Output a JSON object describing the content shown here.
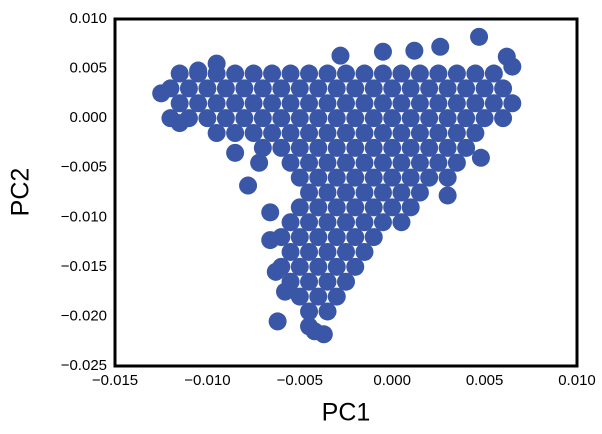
{
  "chart_data": {
    "type": "scatter",
    "x_label": "PC1",
    "y_label": "PC2",
    "xlim": [
      -0.015,
      0.01
    ],
    "ylim": [
      -0.025,
      0.01
    ],
    "xticks": [
      {
        "value": -0.015,
        "label": "−0.015"
      },
      {
        "value": -0.01,
        "label": "−0.010"
      },
      {
        "value": -0.005,
        "label": "−0.005"
      },
      {
        "value": 0,
        "label": "0.000"
      },
      {
        "value": 0.005,
        "label": "0.005"
      },
      {
        "value": 0.01,
        "label": "0.010"
      }
    ],
    "yticks": [
      {
        "value": 0.01,
        "label": "0.010"
      },
      {
        "value": 0.005,
        "label": "0.005"
      },
      {
        "value": 0,
        "label": "0.000"
      },
      {
        "value": -0.005,
        "label": "−0.005"
      },
      {
        "value": -0.01,
        "label": "−0.010"
      },
      {
        "value": -0.015,
        "label": "−0.015"
      },
      {
        "value": -0.02,
        "label": "−0.020"
      },
      {
        "value": -0.025,
        "label": "−0.025"
      }
    ],
    "color": "#3a56a6",
    "x": [
      -0.0115,
      -0.0105,
      -0.0095,
      -0.0085,
      -0.0075,
      -0.0065,
      -0.0055,
      -0.0045,
      -0.0035,
      -0.0025,
      -0.0015,
      -0.0005,
      0.0005,
      0.0015,
      0.0025,
      0.0035,
      0.0045,
      0.0055,
      -0.012,
      -0.011,
      -0.01,
      -0.009,
      -0.008,
      -0.007,
      -0.006,
      -0.005,
      -0.004,
      -0.003,
      -0.002,
      -0.001,
      0,
      0.001,
      0.002,
      0.003,
      0.004,
      0.005,
      0.006,
      -0.0115,
      -0.0105,
      -0.0095,
      -0.0085,
      -0.0075,
      -0.0065,
      -0.0055,
      -0.0045,
      -0.0035,
      -0.0025,
      -0.0015,
      -0.0005,
      0.0005,
      0.0015,
      0.0025,
      0.0035,
      0.0045,
      0.0055,
      0.0065,
      -0.012,
      -0.011,
      -0.01,
      -0.009,
      -0.008,
      -0.007,
      -0.006,
      -0.005,
      -0.004,
      -0.003,
      -0.002,
      -0.001,
      0,
      0.001,
      0.002,
      0.003,
      0.004,
      0.005,
      0.006,
      -0.0095,
      -0.0085,
      -0.0075,
      -0.0065,
      -0.0055,
      -0.0045,
      -0.0035,
      -0.0025,
      -0.0015,
      -0.0005,
      0.0005,
      0.0015,
      0.0025,
      0.0035,
      0.0045,
      -0.007,
      -0.006,
      -0.005,
      -0.004,
      -0.003,
      -0.002,
      -0.001,
      0,
      0.001,
      0.002,
      0.003,
      0.004,
      -0.0055,
      -0.0045,
      -0.0035,
      -0.0025,
      -0.0015,
      -0.0005,
      0.0005,
      0.0015,
      0.0025,
      0.0035,
      -0.005,
      -0.004,
      -0.003,
      -0.002,
      -0.001,
      0,
      0.001,
      0.002,
      0.003,
      -0.0045,
      -0.0035,
      -0.0025,
      -0.0015,
      -0.0005,
      0.0005,
      0.0015,
      -0.005,
      -0.004,
      -0.003,
      -0.002,
      -0.001,
      0,
      0.001,
      -0.0055,
      -0.0045,
      -0.0035,
      -0.0025,
      -0.0015,
      -0.0005,
      0.0005,
      -0.006,
      -0.005,
      -0.004,
      -0.003,
      -0.002,
      -0.001,
      -0.0055,
      -0.0045,
      -0.0035,
      -0.0025,
      -0.0015,
      -0.006,
      -0.005,
      -0.004,
      -0.003,
      -0.002,
      -0.0055,
      -0.0045,
      -0.0035,
      -0.0025,
      -0.005,
      -0.004,
      -0.003,
      -0.0045,
      -0.0035,
      0.0047,
      0.0026,
      0.0012,
      -0.0005,
      -0.0028,
      0.0065,
      -0.0095,
      -0.0072,
      -0.0078,
      -0.0085,
      -0.0066,
      -0.0066,
      -0.0063,
      -0.0058,
      -0.0062,
      -0.0045,
      -0.0037,
      -0.0042,
      -0.0115,
      -0.0125,
      0.0062,
      -0.0105,
      0.003,
      0.0048
    ],
    "values": [
      0.0045,
      0.0045,
      0.0045,
      0.0045,
      0.0045,
      0.0045,
      0.0045,
      0.0045,
      0.0045,
      0.0045,
      0.0045,
      0.0045,
      0.0045,
      0.0045,
      0.0045,
      0.0045,
      0.0045,
      0.0045,
      0.003,
      0.003,
      0.003,
      0.003,
      0.003,
      0.003,
      0.003,
      0.003,
      0.003,
      0.003,
      0.003,
      0.003,
      0.003,
      0.003,
      0.003,
      0.003,
      0.003,
      0.003,
      0.003,
      0.0015,
      0.0015,
      0.0015,
      0.0015,
      0.0015,
      0.0015,
      0.0015,
      0.0015,
      0.0015,
      0.0015,
      0.0015,
      0.0015,
      0.0015,
      0.0015,
      0.0015,
      0.0015,
      0.0015,
      0.0015,
      0.0015,
      0,
      0,
      0,
      0,
      0,
      0,
      0,
      0,
      0,
      0,
      0,
      0,
      0,
      0,
      0,
      0,
      0,
      0,
      0,
      -0.0015,
      -0.0015,
      -0.0015,
      -0.0015,
      -0.0015,
      -0.0015,
      -0.0015,
      -0.0015,
      -0.0015,
      -0.0015,
      -0.0015,
      -0.0015,
      -0.0015,
      -0.0015,
      -0.0015,
      -0.003,
      -0.003,
      -0.003,
      -0.003,
      -0.003,
      -0.003,
      -0.003,
      -0.003,
      -0.003,
      -0.003,
      -0.003,
      -0.003,
      -0.0045,
      -0.0045,
      -0.0045,
      -0.0045,
      -0.0045,
      -0.0045,
      -0.0045,
      -0.0045,
      -0.0045,
      -0.0045,
      -0.006,
      -0.006,
      -0.006,
      -0.006,
      -0.006,
      -0.006,
      -0.006,
      -0.006,
      -0.006,
      -0.0075,
      -0.0075,
      -0.0075,
      -0.0075,
      -0.0075,
      -0.0075,
      -0.0075,
      -0.009,
      -0.009,
      -0.009,
      -0.009,
      -0.009,
      -0.009,
      -0.009,
      -0.0105,
      -0.0105,
      -0.0105,
      -0.0105,
      -0.0105,
      -0.0105,
      -0.0105,
      -0.012,
      -0.012,
      -0.012,
      -0.012,
      -0.012,
      -0.012,
      -0.0135,
      -0.0135,
      -0.0135,
      -0.0135,
      -0.0135,
      -0.015,
      -0.015,
      -0.015,
      -0.015,
      -0.015,
      -0.0165,
      -0.0165,
      -0.0165,
      -0.0165,
      -0.018,
      -0.018,
      -0.018,
      -0.0195,
      -0.0195,
      0.0082,
      0.0072,
      0.0068,
      0.0067,
      0.0063,
      0.0052,
      0.0055,
      -0.0045,
      -0.0068,
      -0.0035,
      -0.0095,
      -0.0123,
      -0.0155,
      -0.0175,
      -0.0205,
      -0.021,
      -0.0218,
      -0.0215,
      -0.0005,
      0.0025,
      0.0062,
      0.0048,
      -0.0078,
      -0.004
    ]
  }
}
